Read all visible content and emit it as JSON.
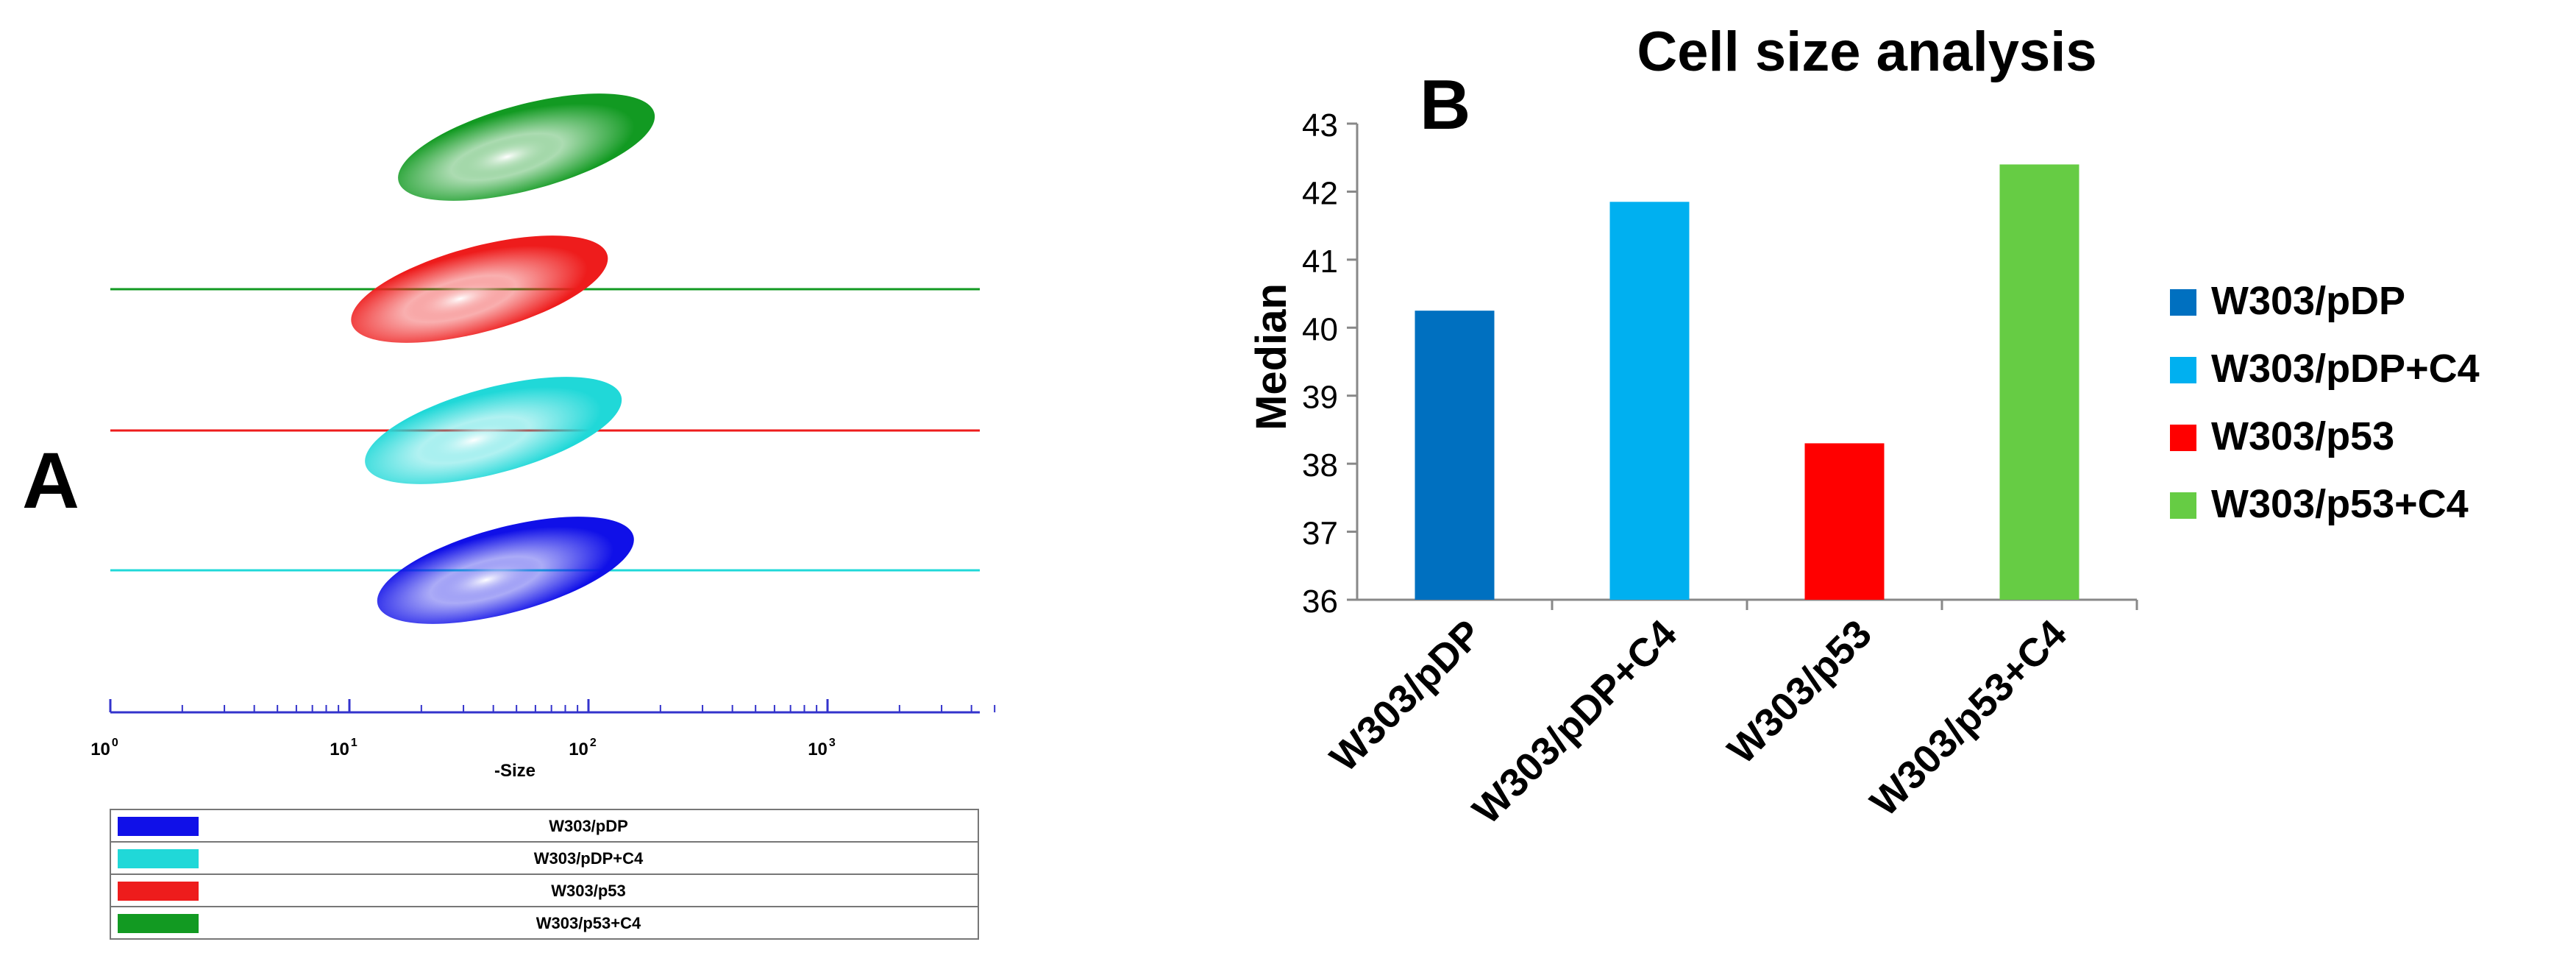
{
  "chart_data": [
    {
      "panel": "A",
      "type": "scatter",
      "subtype": "overlaid flow cytometry density plots",
      "xlabel": "-Size",
      "xscale": "log",
      "xlim": [
        1,
        5000
      ],
      "xticks": [
        {
          "base": "10",
          "exp": "0",
          "value": 1
        },
        {
          "base": "10",
          "exp": "1",
          "value": 10
        },
        {
          "base": "10",
          "exp": "2",
          "value": 100
        },
        {
          "base": "10",
          "exp": "3",
          "value": 1000
        }
      ],
      "series": [
        {
          "name": "W303/pDP",
          "color": "#1010e8",
          "center_size": 45,
          "stack_level": 0
        },
        {
          "name": "W303/pDP+C4",
          "color": "#20d8d8",
          "center_size": 40,
          "stack_level": 1
        },
        {
          "name": "W303/p53",
          "color": "#ee1c1c",
          "center_size": 35,
          "stack_level": 2
        },
        {
          "name": "W303/p53+C4",
          "color": "#129a22",
          "center_size": 55,
          "stack_level": 3
        }
      ]
    },
    {
      "panel": "B",
      "type": "bar",
      "title": "Cell size analysis",
      "xlabel": "",
      "ylabel": "Median",
      "ylim": [
        36,
        43
      ],
      "yticks": [
        36,
        37,
        38,
        39,
        40,
        41,
        42,
        43
      ],
      "categories": [
        "W303/pDP",
        "W303/pDP+C4",
        "W303/p53",
        "W303/p53+C4"
      ],
      "values": [
        40.25,
        41.85,
        38.3,
        42.4
      ],
      "colors": [
        "#0070c0",
        "#00b0f0",
        "#ff0000",
        "#66cc44"
      ],
      "legend": [
        {
          "label": "W303/pDP",
          "color": "#0070c0"
        },
        {
          "label": "W303/pDP+C4",
          "color": "#00b0f0"
        },
        {
          "label": "W303/p53",
          "color": "#ff0000"
        },
        {
          "label": "W303/p53+C4",
          "color": "#66cc44"
        }
      ],
      "legend_position": "right"
    }
  ]
}
